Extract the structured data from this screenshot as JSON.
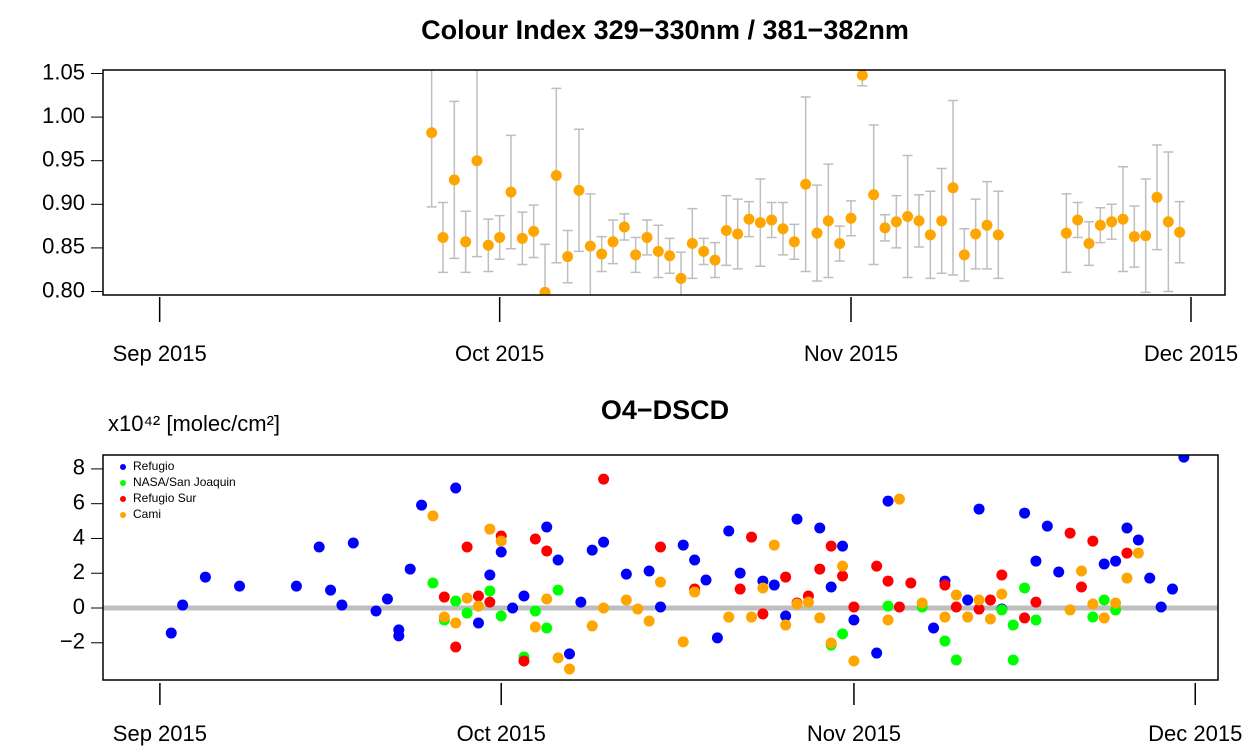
{
  "chart_data": [
    {
      "type": "scatter",
      "title": "Colour Index 329−330nm / 381−382nm",
      "x": [
        "2015-09-25",
        "2015-09-26",
        "2015-09-27",
        "2015-09-28",
        "2015-09-29",
        "2015-09-30",
        "2015-10-01",
        "2015-10-02",
        "2015-10-03",
        "2015-10-04",
        "2015-10-05",
        "2015-10-06",
        "2015-10-07",
        "2015-10-08",
        "2015-10-09",
        "2015-10-10",
        "2015-10-11",
        "2015-10-12",
        "2015-10-13",
        "2015-10-14",
        "2015-10-15",
        "2015-10-16",
        "2015-10-17",
        "2015-10-18",
        "2015-10-19",
        "2015-10-20",
        "2015-10-21",
        "2015-10-22",
        "2015-10-23",
        "2015-10-24",
        "2015-10-25",
        "2015-10-26",
        "2015-10-27",
        "2015-10-28",
        "2015-10-29",
        "2015-10-30",
        "2015-10-31",
        "2015-11-01",
        "2015-11-02",
        "2015-11-03",
        "2015-11-04",
        "2015-11-05",
        "2015-11-06",
        "2015-11-07",
        "2015-11-08",
        "2015-11-09",
        "2015-11-10",
        "2015-11-11",
        "2015-11-12",
        "2015-11-13",
        "2015-11-14",
        "2015-11-20",
        "2015-11-21",
        "2015-11-22",
        "2015-11-23",
        "2015-11-24",
        "2015-11-25",
        "2015-11-26",
        "2015-11-27",
        "2015-11-28",
        "2015-11-29",
        "2015-11-30"
      ],
      "values": [
        0.982,
        0.862,
        0.928,
        0.857,
        0.95,
        0.853,
        0.862,
        0.914,
        0.861,
        0.869,
        0.799,
        0.933,
        0.84,
        0.916,
        0.852,
        0.843,
        0.857,
        0.874,
        0.842,
        0.862,
        0.846,
        0.841,
        0.815,
        0.855,
        0.846,
        0.836,
        0.87,
        0.866,
        0.883,
        0.879,
        0.882,
        0.872,
        0.857,
        0.923,
        0.867,
        0.881,
        0.855,
        0.884,
        1.048,
        0.911,
        0.873,
        0.88,
        0.886,
        0.881,
        0.865,
        0.881,
        0.919,
        0.842,
        0.866,
        0.876,
        0.865,
        0.867,
        0.882,
        0.855,
        0.876,
        0.88,
        0.883,
        0.863,
        0.864,
        0.908,
        0.88,
        0.868
      ],
      "errors": [
        0.085,
        0.04,
        0.09,
        0.035,
        0.11,
        0.03,
        0.025,
        0.065,
        0.03,
        0.03,
        0.055,
        0.1,
        0.03,
        0.07,
        0.06,
        0.02,
        0.025,
        0.015,
        0.02,
        0.02,
        0.03,
        0.02,
        0.03,
        0.04,
        0.015,
        0.02,
        0.04,
        0.04,
        0.02,
        0.05,
        0.02,
        0.03,
        0.02,
        0.1,
        0.055,
        0.065,
        0.02,
        0.02,
        0.012,
        0.08,
        0.015,
        0.03,
        0.07,
        0.03,
        0.05,
        0.06,
        0.1,
        0.03,
        0.04,
        0.05,
        0.05,
        0.045,
        0.02,
        0.025,
        0.02,
        0.02,
        0.06,
        0.035,
        0.065,
        0.06,
        0.08,
        0.035
      ],
      "color": "#ffa500",
      "error_color": "#bebebe",
      "xlim": [
        "2015-08-27",
        "2015-12-04"
      ],
      "xticks": [
        {
          "value": "2015-09-01",
          "label": "Sep 2015"
        },
        {
          "value": "2015-10-01",
          "label": "Oct 2015"
        },
        {
          "value": "2015-11-01",
          "label": "Nov 2015"
        },
        {
          "value": "2015-12-01",
          "label": "Dec 2015"
        }
      ],
      "ylim": [
        0.796,
        1.054
      ],
      "yticks": [
        {
          "value": 0.8,
          "label": "0.80"
        },
        0.85,
        {
          "value": 0.9,
          "label": "0.90"
        },
        0.95,
        {
          "value": 1,
          "label": "1.00"
        },
        1.05
      ]
    },
    {
      "type": "scatter",
      "title": "O4−DSCD",
      "y_label": "x10⁴² [molec/cm²]",
      "legend": "topleft",
      "reference_line": 0,
      "reference_color": "#bebebe",
      "series": [
        {
          "name": "Refugio",
          "color": "#0000ff",
          "x": [
            "2015-09-02",
            "2015-09-03",
            "2015-09-05",
            "2015-09-08",
            "2015-09-13",
            "2015-09-15",
            "2015-09-16",
            "2015-09-17",
            "2015-09-18",
            "2015-09-20",
            "2015-09-21",
            "2015-09-22",
            "2015-09-22",
            "2015-09-23",
            "2015-09-24",
            "2015-09-27",
            "2015-09-29",
            "2015-09-30",
            "2015-10-01",
            "2015-10-02",
            "2015-10-03",
            "2015-10-05",
            "2015-10-06",
            "2015-10-07",
            "2015-10-08",
            "2015-10-09",
            "2015-10-10",
            "2015-10-12",
            "2015-10-14",
            "2015-10-15",
            "2015-10-17",
            "2015-10-18",
            "2015-10-19",
            "2015-10-20",
            "2015-10-21",
            "2015-10-22",
            "2015-10-24",
            "2015-10-25",
            "2015-10-26",
            "2015-10-27",
            "2015-10-29",
            "2015-10-30",
            "2015-10-31",
            "2015-11-01",
            "2015-11-03",
            "2015-11-04",
            "2015-11-08",
            "2015-11-09",
            "2015-11-11",
            "2015-11-12",
            "2015-11-14",
            "2015-11-16",
            "2015-11-17",
            "2015-11-18",
            "2015-11-19",
            "2015-11-23",
            "2015-11-24",
            "2015-11-25",
            "2015-11-26",
            "2015-11-27",
            "2015-11-28",
            "2015-11-29",
            "2015-11-30"
          ],
          "values": [
            -1.44,
            0.17,
            1.78,
            1.26,
            1.26,
            3.51,
            1.03,
            0.17,
            3.74,
            -0.17,
            0.52,
            -1.26,
            -1.6,
            2.24,
            5.92,
            6.9,
            -0.86,
            1.9,
            3.22,
            0,
            0.69,
            4.66,
            2.76,
            -2.64,
            0.34,
            3.33,
            3.79,
            1.95,
            2.13,
            0.06,
            3.62,
            2.76,
            1.61,
            -1.72,
            4.43,
            2.01,
            1.55,
            1.32,
            -0.46,
            5.11,
            4.6,
            1.21,
            3.56,
            -0.69,
            -2.59,
            6.15,
            -1.15,
            1.55,
            0.46,
            5.69,
            -0.06,
            5.46,
            2.7,
            4.71,
            2.07,
            2.53,
            2.7,
            4.6,
            3.91,
            1.72,
            0.06,
            1.09,
            8.68
          ]
        },
        {
          "name": "NASA/San Joaquin",
          "color": "#00ff00",
          "x": [
            "2015-09-25",
            "2015-09-26",
            "2015-09-27",
            "2015-09-28",
            "2015-09-30",
            "2015-10-01",
            "2015-10-03",
            "2015-10-04",
            "2015-10-05",
            "2015-10-06",
            "2015-10-30",
            "2015-10-31",
            "2015-11-04",
            "2015-11-07",
            "2015-11-09",
            "2015-11-10",
            "2015-11-14",
            "2015-11-15",
            "2015-11-15",
            "2015-11-16",
            "2015-11-17",
            "2015-11-22",
            "2015-11-23",
            "2015-11-24"
          ],
          "values": [
            1.44,
            -0.69,
            0.4,
            -0.29,
            0.98,
            -0.46,
            -2.82,
            -0.17,
            -1.15,
            1.03,
            -2.13,
            -1.49,
            0.11,
            0.06,
            -1.9,
            -2.99,
            -0.11,
            -0.98,
            -2.99,
            1.15,
            -0.69,
            -0.52,
            0.46,
            -0.11
          ]
        },
        {
          "name": "Refugio Sur",
          "color": "#ff0000",
          "x": [
            "2015-09-26",
            "2015-09-27",
            "2015-09-28",
            "2015-09-29",
            "2015-09-30",
            "2015-10-01",
            "2015-10-03",
            "2015-10-04",
            "2015-10-05",
            "2015-10-10",
            "2015-10-15",
            "2015-10-18",
            "2015-10-22",
            "2015-10-23",
            "2015-10-24",
            "2015-10-26",
            "2015-10-27",
            "2015-10-28",
            "2015-10-29",
            "2015-10-30",
            "2015-10-31",
            "2015-11-01",
            "2015-11-03",
            "2015-11-04",
            "2015-11-05",
            "2015-11-06",
            "2015-11-09",
            "2015-11-10",
            "2015-11-12",
            "2015-11-13",
            "2015-11-14",
            "2015-11-16",
            "2015-11-17",
            "2015-11-20",
            "2015-11-21",
            "2015-11-22",
            "2015-11-25"
          ],
          "values": [
            0.63,
            -2.24,
            3.51,
            0.69,
            0.34,
            4.14,
            -3.05,
            3.97,
            3.28,
            7.41,
            3.51,
            1.09,
            1.09,
            4.08,
            -0.34,
            1.78,
            0.29,
            0.69,
            2.24,
            3.56,
            1.84,
            0.06,
            2.41,
            1.55,
            0.06,
            1.44,
            1.32,
            0.06,
            -0.06,
            0.46,
            1.9,
            -0.57,
            0.34,
            4.31,
            1.21,
            3.85,
            3.16
          ]
        },
        {
          "name": "Cami",
          "color": "#ffa500",
          "x": [
            "2015-09-25",
            "2015-09-26",
            "2015-09-27",
            "2015-09-28",
            "2015-09-29",
            "2015-09-30",
            "2015-10-01",
            "2015-10-04",
            "2015-10-05",
            "2015-10-06",
            "2015-10-07",
            "2015-10-09",
            "2015-10-10",
            "2015-10-12",
            "2015-10-13",
            "2015-10-14",
            "2015-10-15",
            "2015-10-17",
            "2015-10-18",
            "2015-10-21",
            "2015-10-23",
            "2015-10-24",
            "2015-10-25",
            "2015-10-26",
            "2015-10-27",
            "2015-10-28",
            "2015-10-29",
            "2015-10-30",
            "2015-10-31",
            "2015-11-01",
            "2015-11-04",
            "2015-11-05",
            "2015-11-07",
            "2015-11-09",
            "2015-11-10",
            "2015-11-11",
            "2015-11-12",
            "2015-11-13",
            "2015-11-14",
            "2015-11-20",
            "2015-11-21",
            "2015-11-22",
            "2015-11-23",
            "2015-11-24",
            "2015-11-25",
            "2015-11-26"
          ],
          "values": [
            5.3,
            -0.52,
            -0.86,
            0.57,
            0.11,
            4.54,
            3.85,
            -1.09,
            0.52,
            -2.87,
            -3.51,
            -1.03,
            0,
            0.46,
            -0.06,
            -0.75,
            1.49,
            -1.95,
            0.92,
            -0.52,
            -0.52,
            1.15,
            3.62,
            -0.98,
            0.23,
            0.34,
            -0.57,
            -2.01,
            2.41,
            -3.05,
            -0.69,
            6.26,
            0.29,
            -0.52,
            0.75,
            -0.52,
            0.46,
            -0.63,
            0.8,
            -0.11,
            2.13,
            0.23,
            -0.57,
            0.29,
            1.72,
            3.16
          ]
        }
      ],
      "xlim": [
        "2015-08-27",
        "2015-12-03"
      ],
      "xticks": [
        {
          "value": "2015-09-01",
          "label": "Sep 2015"
        },
        {
          "value": "2015-10-01",
          "label": "Oct 2015"
        },
        {
          "value": "2015-11-01",
          "label": "Nov 2015"
        },
        {
          "value": "2015-12-01",
          "label": "Dec 2015"
        }
      ],
      "ylim": [
        -4.14,
        8.8
      ],
      "yticks": [
        {
          "value": -2,
          "label": "−2"
        },
        0,
        2,
        4,
        6,
        8
      ]
    }
  ]
}
